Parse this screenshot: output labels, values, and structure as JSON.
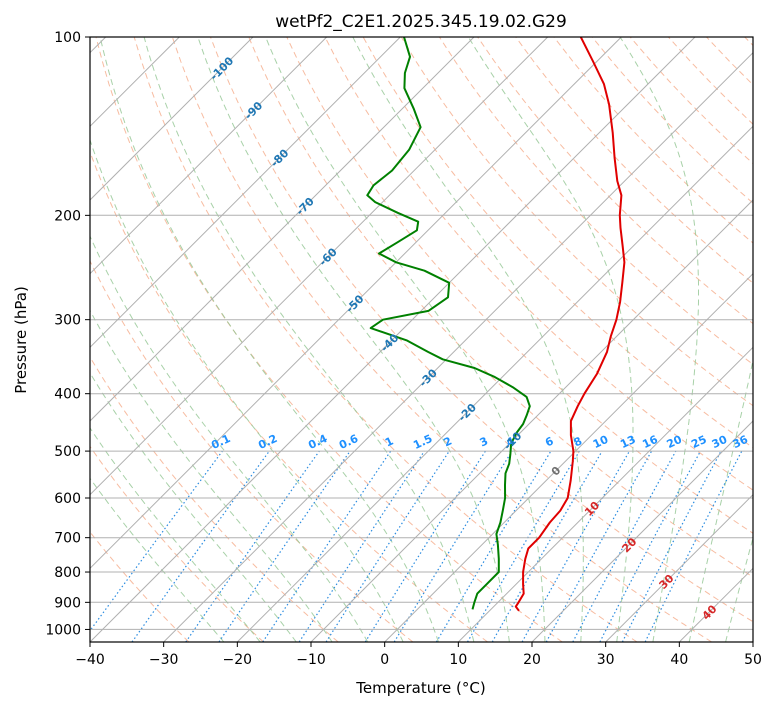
{
  "colors": {
    "temperature": "#e00000",
    "dewpoint": "#008000",
    "isotherm": "#b0b0b0",
    "isobar": "#b0b0b0",
    "dry_adiabat": "#f4a582",
    "moist_adiabat": "#92c592",
    "mixing_ratio": "#2b8ce0",
    "label_blue": "#1f77b4",
    "label_ratio": "#1e90ff",
    "label_red": "#d62728",
    "label_gray": "#707070"
  },
  "chart_data": {
    "type": "line",
    "title": "wetPf2_C2E1.2025.345.19.02.G29",
    "xlabel": "Temperature (°C)",
    "ylabel": "Pressure (hPa)",
    "xlim": [
      -40,
      50
    ],
    "ylim": [
      1050,
      100
    ],
    "y_scale": "log",
    "grid": true,
    "x_ticks": [
      -40,
      -30,
      -20,
      -10,
      0,
      10,
      20,
      30,
      40,
      50
    ],
    "x_tick_labels": [
      "−40",
      "−30",
      "−20",
      "−10",
      "0",
      "10",
      "20",
      "30",
      "40",
      "50"
    ],
    "y_ticks": [
      1000,
      900,
      800,
      700,
      600,
      500,
      400,
      300,
      200,
      100
    ],
    "y_tick_labels": [
      "1000",
      "900",
      "800",
      "700",
      "600",
      "500",
      "400",
      "300",
      "200",
      "100"
    ],
    "skew_isotherm_labels": [
      {
        "value": -100,
        "text": "-100",
        "p": 113
      },
      {
        "value": -90,
        "text": "-90",
        "p": 133
      },
      {
        "value": -80,
        "text": "-80",
        "p": 160
      },
      {
        "value": -70,
        "text": "-70",
        "p": 193
      },
      {
        "value": -60,
        "text": "-60",
        "p": 235
      },
      {
        "value": -50,
        "text": "-50",
        "p": 282
      },
      {
        "value": -40,
        "text": "-40",
        "p": 328
      },
      {
        "value": -30,
        "text": "-30",
        "p": 376
      },
      {
        "value": -20,
        "text": "-20",
        "p": 430
      },
      {
        "value": -10,
        "text": "-10",
        "p": 480
      },
      {
        "value": 0,
        "text": "0",
        "p": 540
      },
      {
        "value": 10,
        "text": "10",
        "p": 625
      },
      {
        "value": 20,
        "text": "20",
        "p": 720
      },
      {
        "value": 30,
        "text": "30",
        "p": 830
      },
      {
        "value": 40,
        "text": "40",
        "p": 935
      }
    ],
    "mixing_ratio_labels": [
      "0.1",
      "0.2",
      "0.4",
      "0.6",
      "1",
      "1.5",
      "2",
      "3",
      "4",
      "6",
      "8",
      "10",
      "13",
      "16",
      "20",
      "25",
      "30",
      "36"
    ],
    "mixing_ratio_values": [
      0.1,
      0.2,
      0.4,
      0.6,
      1,
      1.5,
      2,
      3,
      4,
      6,
      8,
      10,
      13,
      16,
      20,
      25,
      30,
      36
    ],
    "series": [
      {
        "key": "temperature",
        "points": [
          [
            930,
            14.0
          ],
          [
            915,
            13.0
          ],
          [
            900,
            12.8
          ],
          [
            870,
            12.3
          ],
          [
            840,
            11.0
          ],
          [
            800,
            9.3
          ],
          [
            760,
            7.8
          ],
          [
            730,
            6.8
          ],
          [
            700,
            6.8
          ],
          [
            660,
            6.2
          ],
          [
            630,
            6.0
          ],
          [
            600,
            5.3
          ],
          [
            560,
            3.3
          ],
          [
            520,
            1.0
          ],
          [
            500,
            -0.3
          ],
          [
            470,
            -2.8
          ],
          [
            445,
            -4.7
          ],
          [
            420,
            -5.8
          ],
          [
            400,
            -6.6
          ],
          [
            370,
            -7.6
          ],
          [
            340,
            -9.2
          ],
          [
            320,
            -10.8
          ],
          [
            300,
            -12.3
          ],
          [
            280,
            -14.2
          ],
          [
            260,
            -16.5
          ],
          [
            240,
            -19.0
          ],
          [
            225,
            -21.5
          ],
          [
            210,
            -24.2
          ],
          [
            200,
            -26.0
          ],
          [
            185,
            -28.5
          ],
          [
            175,
            -31.0
          ],
          [
            160,
            -34.5
          ],
          [
            145,
            -38.2
          ],
          [
            130,
            -42.5
          ],
          [
            120,
            -46.0
          ],
          [
            110,
            -50.5
          ],
          [
            100,
            -55.5
          ]
        ]
      },
      {
        "key": "dewpoint",
        "points": [
          [
            925,
            7.5
          ],
          [
            900,
            6.8
          ],
          [
            870,
            6.0
          ],
          [
            840,
            6.0
          ],
          [
            800,
            6.0
          ],
          [
            760,
            4.2
          ],
          [
            720,
            2.2
          ],
          [
            690,
            0.5
          ],
          [
            660,
            -0.5
          ],
          [
            630,
            -1.8
          ],
          [
            600,
            -3.2
          ],
          [
            570,
            -5.0
          ],
          [
            545,
            -6.5
          ],
          [
            525,
            -7.3
          ],
          [
            505,
            -8.5
          ],
          [
            485,
            -9.8
          ],
          [
            465,
            -10.5
          ],
          [
            450,
            -10.8
          ],
          [
            435,
            -11.5
          ],
          [
            420,
            -12.3
          ],
          [
            405,
            -14.0
          ],
          [
            390,
            -17.2
          ],
          [
            375,
            -21.0
          ],
          [
            362,
            -25.0
          ],
          [
            350,
            -30.5
          ],
          [
            340,
            -33.5
          ],
          [
            325,
            -38.0
          ],
          [
            310,
            -44.5
          ],
          [
            300,
            -44.0
          ],
          [
            290,
            -39.0
          ],
          [
            275,
            -38.2
          ],
          [
            260,
            -40.0
          ],
          [
            248,
            -45.0
          ],
          [
            240,
            -50.0
          ],
          [
            232,
            -53.5
          ],
          [
            222,
            -52.5
          ],
          [
            212,
            -51.5
          ],
          [
            205,
            -52.5
          ],
          [
            198,
            -56.5
          ],
          [
            190,
            -61.0
          ],
          [
            185,
            -63.0
          ],
          [
            178,
            -63.5
          ],
          [
            168,
            -63.0
          ],
          [
            155,
            -63.5
          ],
          [
            142,
            -65.0
          ],
          [
            132,
            -68.5
          ],
          [
            122,
            -72.5
          ],
          [
            115,
            -74.5
          ],
          [
            108,
            -76.0
          ],
          [
            100,
            -79.5
          ]
        ]
      }
    ]
  }
}
